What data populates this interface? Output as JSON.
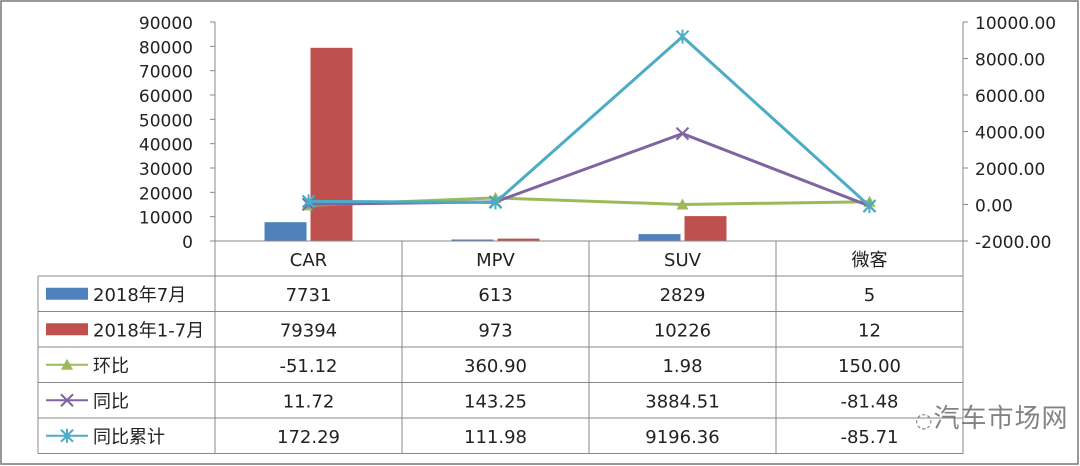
{
  "chart_data": {
    "type": "bar",
    "categories": [
      "CAR",
      "MPV",
      "SUV",
      "微客"
    ],
    "left_axis": {
      "ylim": [
        0,
        90000
      ],
      "ticks": [
        "0",
        "10000",
        "20000",
        "30000",
        "40000",
        "50000",
        "60000",
        "70000",
        "80000",
        "90000"
      ]
    },
    "right_axis": {
      "ylim": [
        -2000,
        10000
      ],
      "ticks": [
        "-2000.00",
        "0.00",
        "2000.00",
        "4000.00",
        "6000.00",
        "8000.00",
        "10000.00"
      ]
    },
    "series": [
      {
        "name": "2018年7月",
        "kind": "bar",
        "axis": "left",
        "color": "#4f81bd",
        "values": [
          7731,
          613,
          2829,
          5
        ],
        "labels": [
          "7731",
          "613",
          "2829",
          "5"
        ]
      },
      {
        "name": "2018年1-7月",
        "kind": "bar",
        "axis": "left",
        "color": "#c0504d",
        "values": [
          79394,
          973,
          10226,
          12
        ],
        "labels": [
          "79394",
          "973",
          "10226",
          "12"
        ]
      },
      {
        "name": "环比",
        "kind": "line",
        "marker": "triangle",
        "axis": "right",
        "color": "#9bbb59",
        "values": [
          -51.12,
          360.9,
          1.98,
          150.0
        ],
        "labels": [
          "-51.12",
          "360.90",
          "1.98",
          "150.00"
        ]
      },
      {
        "name": "同比",
        "kind": "line",
        "marker": "x",
        "axis": "right",
        "color": "#8064a2",
        "values": [
          11.72,
          143.25,
          3884.51,
          -81.48
        ],
        "labels": [
          "11.72",
          "143.25",
          "3884.51",
          "-81.48"
        ]
      },
      {
        "name": "同比累计",
        "kind": "line",
        "marker": "star",
        "axis": "right",
        "color": "#4bacc6",
        "values": [
          172.29,
          111.98,
          9196.36,
          -85.71
        ],
        "labels": [
          "172.29",
          "111.98",
          "9196.36",
          "-85.71"
        ]
      }
    ],
    "legend": "data-table-bottom",
    "grid": false
  },
  "watermark": "汽车市场网"
}
